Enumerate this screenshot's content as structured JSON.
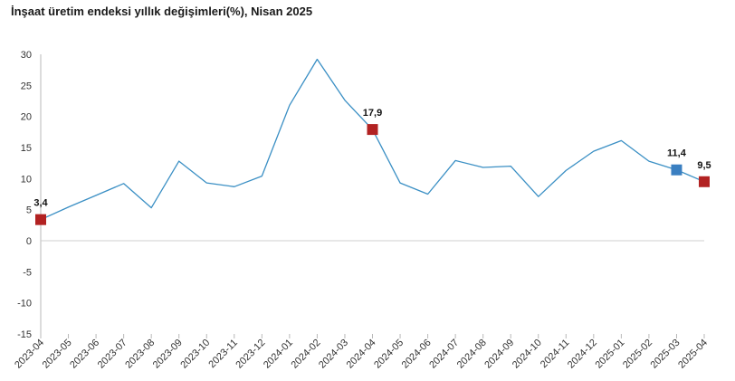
{
  "chart_data": {
    "type": "line",
    "title": "İnşaat üretim endeksi yıllık değişimleri(%), Nisan 2025",
    "xlabel": "",
    "ylabel": "",
    "ylim": [
      -15,
      30
    ],
    "yticks": [
      30,
      25,
      20,
      15,
      10,
      5,
      0,
      -5,
      -10,
      -15
    ],
    "ytick_labels": [
      "30",
      "25",
      "20",
      "15",
      "10",
      "5",
      "0",
      "-5",
      "-10",
      "-15"
    ],
    "grid": false,
    "categories": [
      "2023-04",
      "2023-05",
      "2023-06",
      "2023-07",
      "2023-08",
      "2023-09",
      "2023-10",
      "2023-11",
      "2023-12",
      "2024-01",
      "2024-02",
      "2024-03",
      "2024-04",
      "2024-05",
      "2024-06",
      "2024-07",
      "2024-08",
      "2024-09",
      "2024-10",
      "2024-11",
      "2024-12",
      "2025-01",
      "2025-02",
      "2025-03",
      "2025-04"
    ],
    "series": [
      {
        "color": "#3a8fc4",
        "values": [
          3.4,
          5.4,
          7.3,
          9.2,
          5.3,
          12.8,
          9.3,
          8.7,
          10.4,
          21.8,
          29.2,
          22.6,
          17.9,
          9.3,
          7.5,
          12.9,
          11.8,
          12.0,
          7.1,
          11.3,
          14.4,
          16.1,
          12.8,
          11.4,
          9.5
        ]
      }
    ],
    "markers": [
      {
        "index": 0,
        "label": "3,4",
        "color": "#b22222"
      },
      {
        "index": 12,
        "label": "17,9",
        "color": "#b22222"
      },
      {
        "index": 23,
        "label": "11,4",
        "color": "#3a7fc1"
      },
      {
        "index": 24,
        "label": "9,5",
        "color": "#b22222"
      }
    ]
  }
}
